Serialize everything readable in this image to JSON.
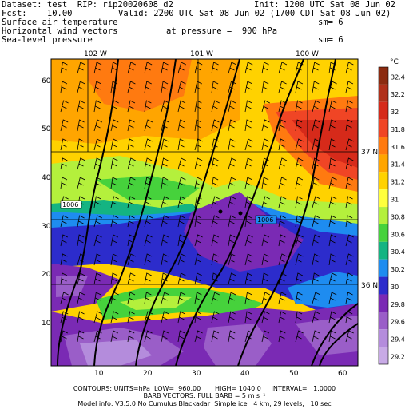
{
  "header": {
    "dataset": "Dataset: test  RIP: rip20020608_d2",
    "init": "Init: 1200 UTC Sat 08 Jun 02",
    "fcst": "Fcst:    10.00",
    "valid": "Valid: 2200 UTC Sat 08 Jun 02 (1700 CDT Sat 08 Jun 02)",
    "field1": "Surface air temperature",
    "field2": "Horizontal wind vectors",
    "pressure": "at pressure =  900 hPa",
    "field3": "Sea-level pressure",
    "sm1": "sm= 6",
    "sm2": "sm= 6"
  },
  "map": {
    "longitudes": [
      "102 W",
      "101 W",
      "100 W"
    ],
    "latitudes": [
      "37 N",
      "36 N"
    ],
    "x_ticks": [
      "10",
      "20",
      "30",
      "40",
      "50",
      "60"
    ],
    "y_ticks": [
      "10",
      "20",
      "30",
      "40",
      "50",
      "60"
    ],
    "contour_labels": [
      "1006",
      "1006"
    ]
  },
  "colorbar": {
    "unit": "°C",
    "labels": [
      "32.4",
      "32.2",
      "32",
      "31.8",
      "31.6",
      "31.4",
      "31.2",
      "31",
      "30.8",
      "30.6",
      "30.4",
      "30.2",
      "30",
      "29.8",
      "29.6",
      "29.4",
      "29.2"
    ],
    "colors": [
      "#8b2b10",
      "#b0301a",
      "#d62a1a",
      "#f04525",
      "#ff7a10",
      "#ffa500",
      "#ffd200",
      "#ffff3c",
      "#b4f03c",
      "#46d23c",
      "#14b482",
      "#1e8cf0",
      "#2c2ccc",
      "#7a2ab4",
      "#9a5ec8",
      "#b48cdc",
      "#c8aae6"
    ]
  },
  "footer": {
    "line1": "CONTOURS: UNITS=hPa  LOW=  960.00       HIGH= 1040.0     INTERVAL=   1.0000",
    "line2": "BARB VECTORS: FULL BARB = 5 m s⁻¹",
    "line3": "Model info: V3.5.0 No Cumulus Blackadar  Simple ice   4 km, 29 levels,   10 sec"
  }
}
